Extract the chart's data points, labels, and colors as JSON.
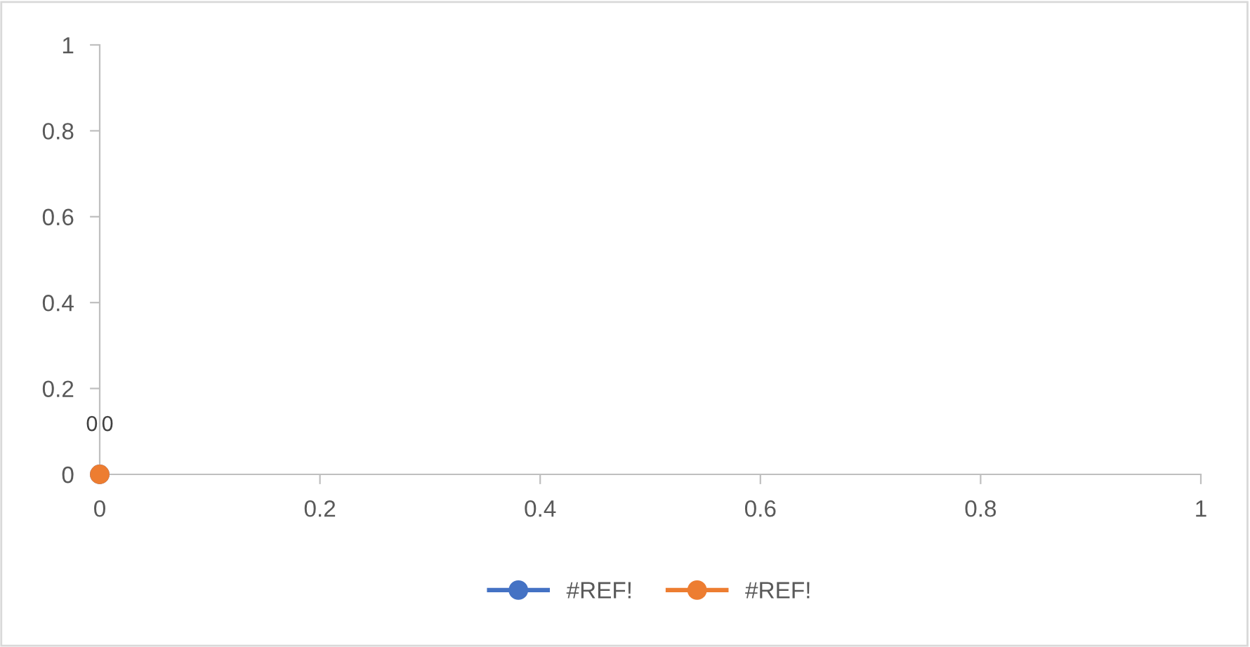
{
  "chart_data": {
    "type": "line",
    "x": [
      0
    ],
    "series": [
      {
        "name": "#REF!",
        "color": "#4472c4",
        "values": [
          0
        ]
      },
      {
        "name": "#REF!",
        "color": "#ed7d31",
        "values": [
          0
        ]
      }
    ],
    "xlim": [
      0,
      1
    ],
    "xticks": [
      0,
      0.2,
      0.4,
      0.6,
      0.8,
      1
    ],
    "ylim": [
      0,
      1
    ],
    "yticks": [
      0,
      0.2,
      0.4,
      0.6,
      0.8,
      1
    ],
    "data_labels": true,
    "marker": "circle",
    "line_style": "solid",
    "grid": false,
    "legend": "bottom"
  }
}
